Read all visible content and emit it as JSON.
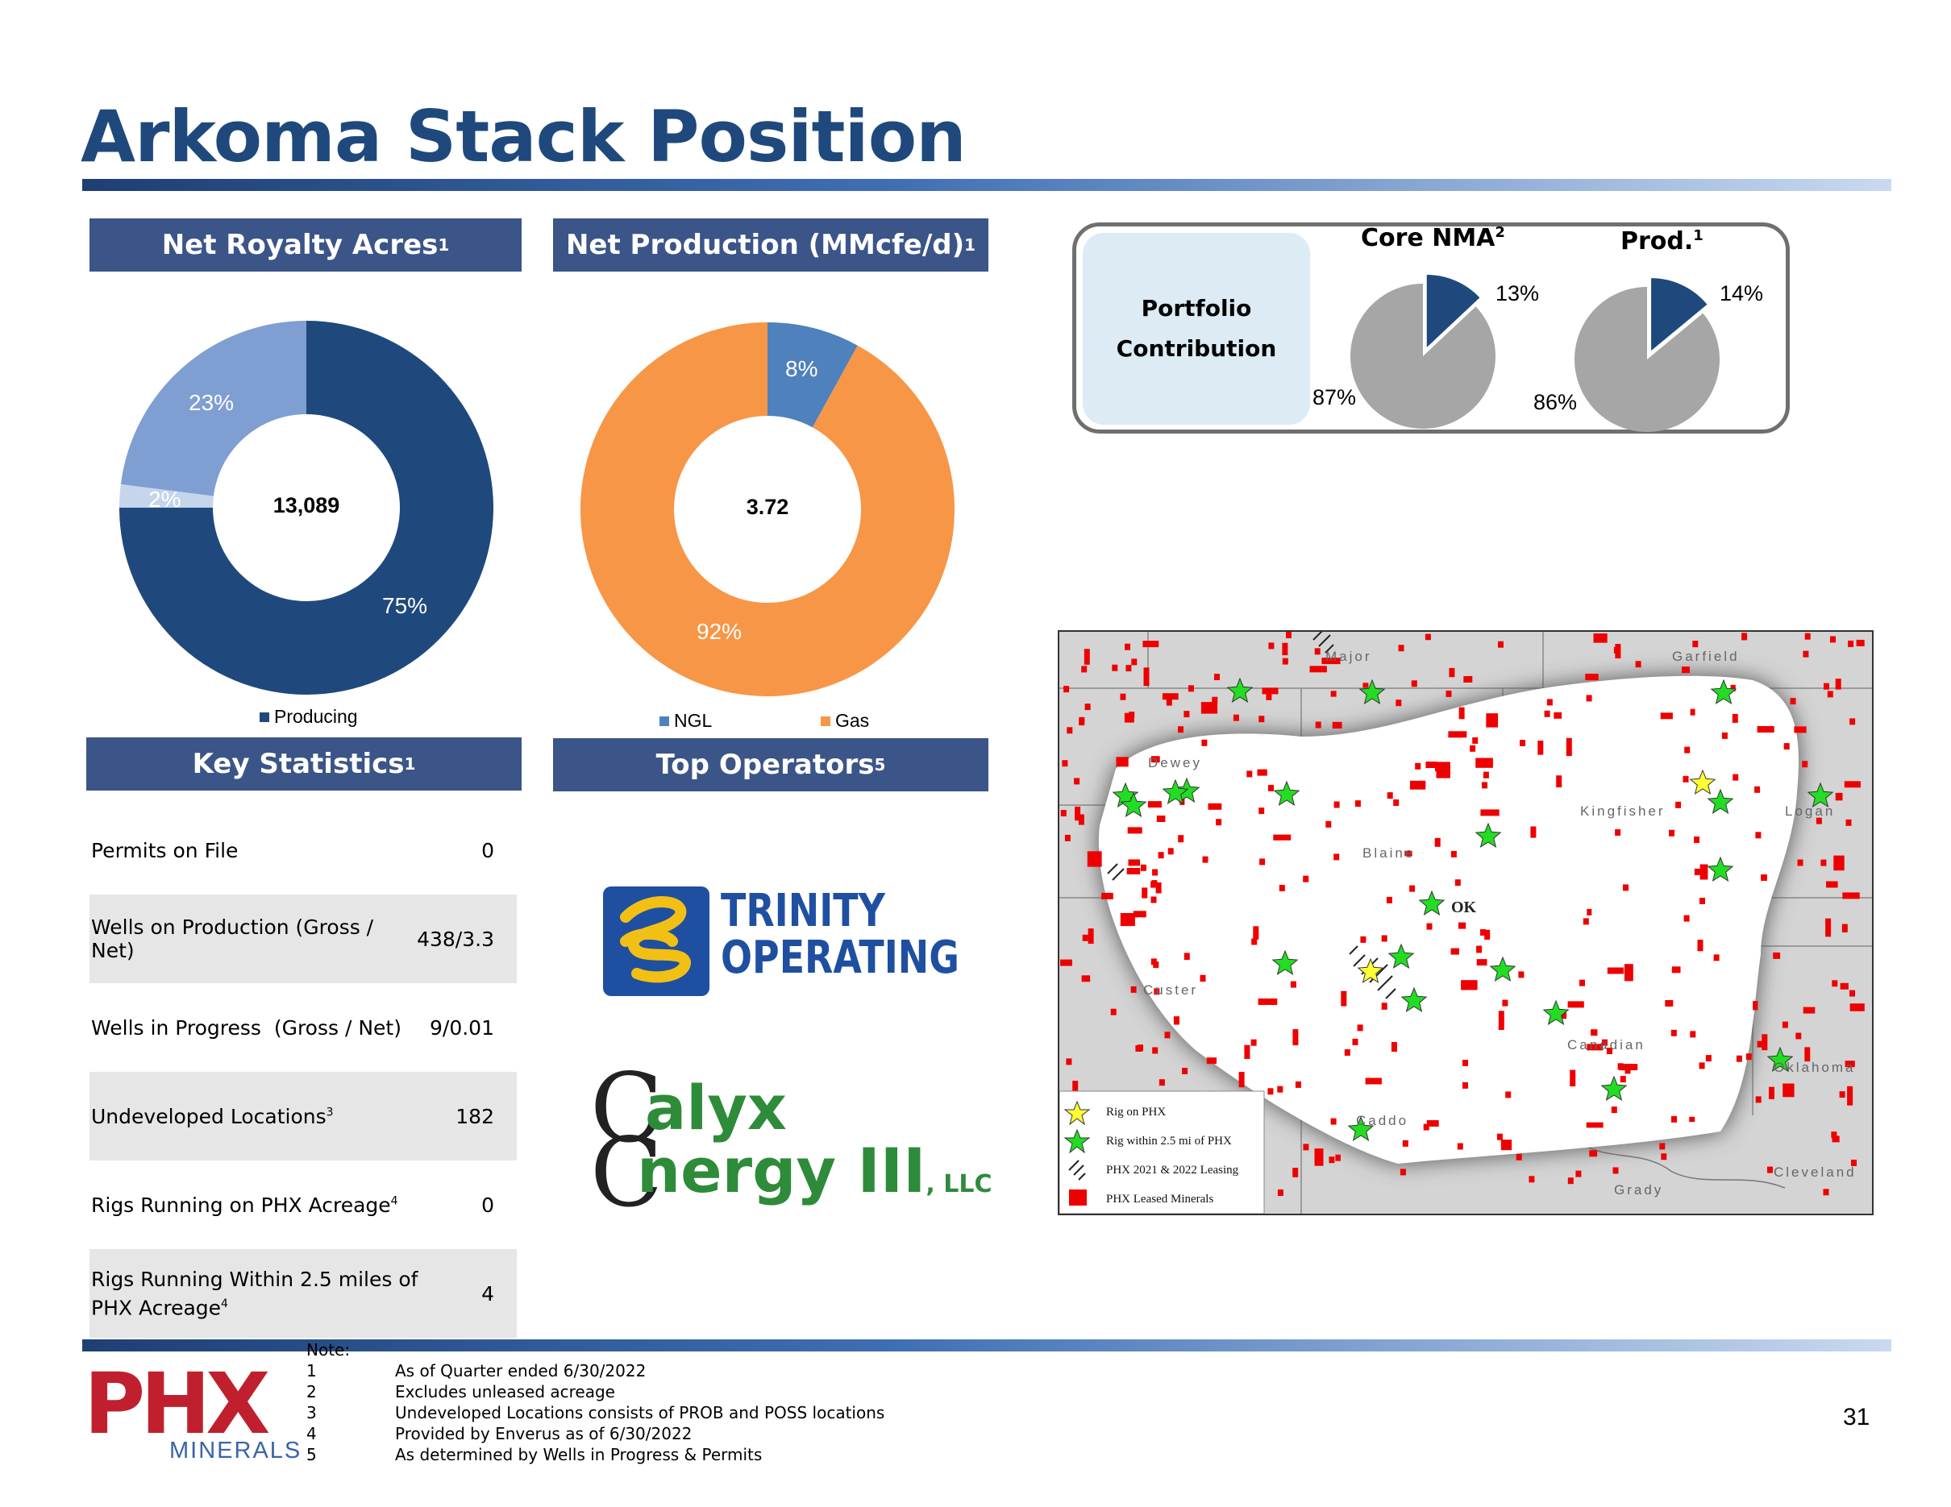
{
  "title": "Arkoma Stack Position",
  "headers": {
    "net_royalty": "Net Royalty Acres",
    "net_production": "Net Production (MMcfe/d)",
    "key_statistics": "Key Statistics",
    "top_operators": "Top Operators",
    "sup1": "1",
    "sup5": "5"
  },
  "chart_data": [
    {
      "type": "pie",
      "title": "Net Royalty Acres",
      "center_label": "13,089",
      "slices": [
        {
          "label": "Producing",
          "value": 75,
          "display": "75%",
          "color": "#1F497D"
        },
        {
          "label": "",
          "value": 2,
          "display": "2%",
          "color": "#C5D5EC"
        },
        {
          "label": "",
          "value": 23,
          "display": "23%",
          "color": "#7F9ED2"
        }
      ],
      "legend": [
        "Producing"
      ]
    },
    {
      "type": "pie",
      "title": "Net Production (MMcfe/d)",
      "center_label": "3.72",
      "slices": [
        {
          "label": "NGL",
          "value": 8,
          "display": "8%",
          "color": "#4F81BD"
        },
        {
          "label": "Gas",
          "value": 92,
          "display": "92%",
          "color": "#F79646"
        }
      ],
      "legend": [
        "NGL",
        "Gas"
      ]
    },
    {
      "type": "pie",
      "title": "Core NMA",
      "title_sup": "2",
      "slices": [
        {
          "label": "",
          "value": 13,
          "display": "13%",
          "color": "#1F497D"
        },
        {
          "label": "",
          "value": 87,
          "display": "87%",
          "color": "#A6A6A6"
        }
      ]
    },
    {
      "type": "pie",
      "title": "Prod.",
      "title_sup": "1",
      "slices": [
        {
          "label": "",
          "value": 14,
          "display": "14%",
          "color": "#1F497D"
        },
        {
          "label": "",
          "value": 86,
          "display": "86%",
          "color": "#A6A6A6"
        }
      ]
    }
  ],
  "portfolio": {
    "line1": "Portfolio",
    "line2": "Contribution"
  },
  "key_statistics": [
    {
      "label": "Permits on File",
      "sup": "",
      "label2": "",
      "sup2": "",
      "value": "0"
    },
    {
      "label": "Wells on Production (Gross / Net)",
      "sup": "",
      "label2": "",
      "sup2": "",
      "value": "438/3.3"
    },
    {
      "label": "Wells in Progress  (Gross / Net)",
      "sup": "",
      "label2": "",
      "sup2": "",
      "value": "9/0.01"
    },
    {
      "label": "Undeveloped Locations",
      "sup": "3",
      "label2": "",
      "sup2": "",
      "value": "182"
    },
    {
      "label": "Rigs Running on PHX Acreage",
      "sup": "4",
      "label2": "",
      "sup2": "",
      "value": "0"
    },
    {
      "label": "Rigs Running Within 2.5 miles of",
      "sup": "",
      "label2": "PHX Acreage",
      "sup2": "4",
      "value": "4"
    }
  ],
  "operators": {
    "trinity_line1": "TRINITY",
    "trinity_line2": "OPERATING",
    "calyx_line1": "alyx",
    "calyx_line2": "nergy III",
    "calyx_llc": ", LLC"
  },
  "map": {
    "counties": [
      "Major",
      "Garfield",
      "Dewey",
      "Kingfisher",
      "Logan",
      "Blaine",
      "Custer",
      "Canadian",
      "Oklahoma",
      "Caddo",
      "Grady",
      "Cleveland"
    ],
    "center_label": "OK",
    "legend": [
      "Rig on PHX",
      "Rig within 2.5 mi of PHX",
      "PHX 2021 & 2022 Leasing",
      "PHX Leased Minerals"
    ],
    "colors": {
      "mineral": "#EE0000",
      "rig_on": "#FFFF33",
      "rig_near": "#22DD22"
    }
  },
  "notes": {
    "heading": "Note:",
    "items": [
      {
        "num": "1",
        "text": "As of Quarter ended 6/30/2022"
      },
      {
        "num": "2",
        "text": "Excludes unleased acreage"
      },
      {
        "num": "3",
        "text": "Undeveloped Locations consists of PROB and POSS locations"
      },
      {
        "num": "4",
        "text": "Provided by Enverus as of 6/30/2022"
      },
      {
        "num": "5",
        "text": "As determined by Wells in Progress & Permits"
      }
    ]
  },
  "logo": {
    "mark": "PHX",
    "sub": "MINERALS"
  },
  "page_number": "31"
}
